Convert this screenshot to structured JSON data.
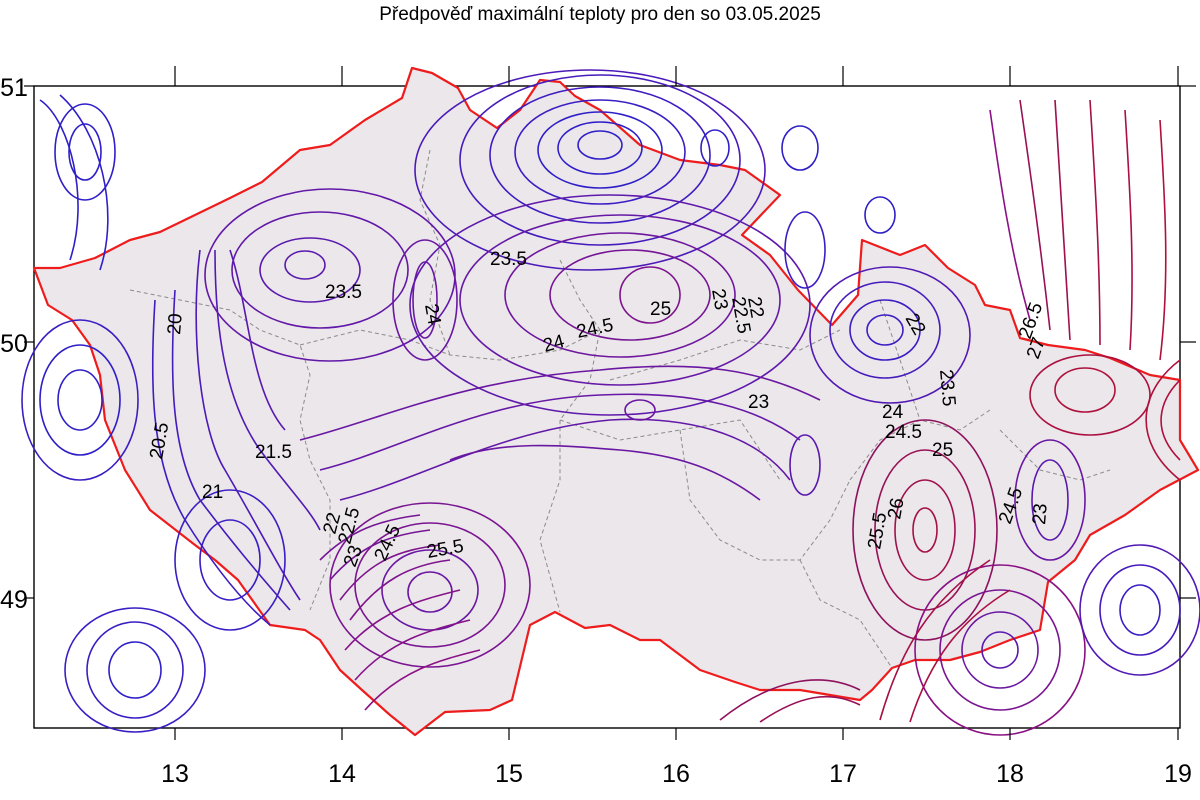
{
  "title": "Předpověď maximální teploty pro den so 03.05.2025",
  "axes": {
    "x_ticks": [
      "13",
      "14",
      "15",
      "16",
      "17",
      "18",
      "19"
    ],
    "y_ticks": [
      "51",
      "50",
      "49"
    ]
  },
  "colors": {
    "border": "#ee1c1c",
    "country_fill": "#ebe7ea",
    "regions": "#8c8c8c",
    "contour_low": "#2f1fc8",
    "contour_high": "#b0103c"
  },
  "contour_labels": [
    "23.5",
    "23.5",
    "24",
    "20",
    "20.5",
    "21.5",
    "21",
    "25",
    "24.5",
    "24",
    "23",
    "22",
    "22.5",
    "23",
    "22",
    "23.5",
    "24",
    "24.5",
    "25",
    "26.5",
    "27",
    "25.5",
    "26",
    "24.5",
    "23",
    "22",
    "22.5",
    "23",
    "24.5",
    "25.5"
  ]
}
